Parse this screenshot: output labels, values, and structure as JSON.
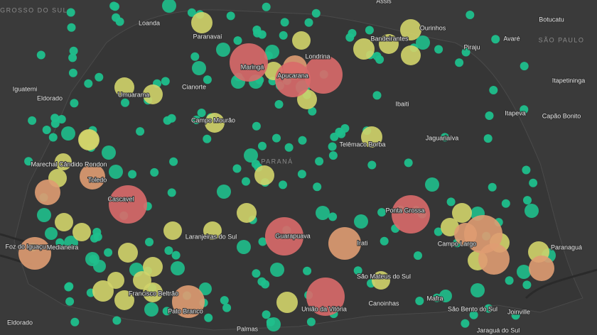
{
  "map": {
    "regions": [
      "MATO GROSSO DO SUL",
      "SÃO PAULO",
      "PARANÁ"
    ],
    "places": [
      "Assis",
      "Loanda",
      "Paranavaí",
      "Ourinhos",
      "Botucatu",
      "Bandeirantes",
      "Avaré",
      "Piraju",
      "Londrina",
      "Maringá",
      "Apucarana",
      "Iguatemi",
      "Eldorado",
      "Umuarama",
      "Cianorte",
      "Ibaiti",
      "Itapetininga",
      "Itapeva",
      "Capão Bonito",
      "Campo Mourão",
      "Jaguariaíva",
      "Telêmaco Borba",
      "Marechal Cândido Rondon",
      "Toledo",
      "Cascavel",
      "Ponta Grossa",
      "Foz do Iguaçu",
      "Medianeira",
      "Laranjeiras do Sul",
      "Guarapuava",
      "Irati",
      "Campo Largo",
      "Paranaguá",
      "São Mateus do Sul",
      "Francisco Beltrão",
      "Pato Branco",
      "União da Vitória",
      "Canoinhas",
      "Mafra",
      "São Bento do Sul",
      "Joinville",
      "Eldorado",
      "Palmas",
      "Jaraguá do Sul"
    ]
  }
}
